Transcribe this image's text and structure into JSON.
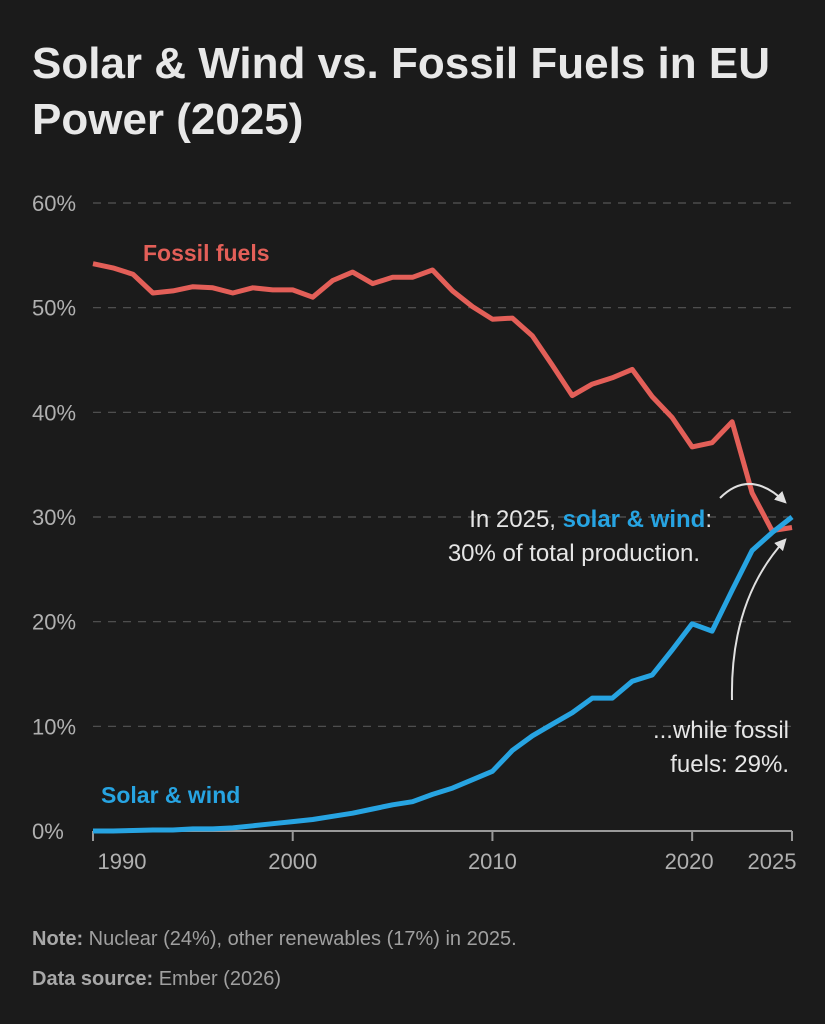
{
  "chart_data": {
    "type": "line",
    "title": "Solar & Wind vs. Fossil Fuels in EU Power (2025)",
    "x": [
      1990,
      1991,
      1992,
      1993,
      1994,
      1995,
      1996,
      1997,
      1998,
      1999,
      2000,
      2001,
      2002,
      2003,
      2004,
      2005,
      2006,
      2007,
      2008,
      2009,
      2010,
      2011,
      2012,
      2013,
      2014,
      2015,
      2016,
      2017,
      2018,
      2019,
      2020,
      2021,
      2022,
      2023,
      2024,
      2025
    ],
    "xticks": [
      "1990",
      "2000",
      "2010",
      "2020",
      "2025"
    ],
    "yticks": [
      "0%",
      "10%",
      "20%",
      "30%",
      "40%",
      "50%",
      "60%"
    ],
    "ylim": [
      0,
      60
    ],
    "xlim": [
      1990,
      2025
    ],
    "grid": "horizontal dashed",
    "series": [
      {
        "name": "Fossil fuels",
        "color": "#e35f58",
        "values": [
          54.2,
          53.8,
          53.2,
          51.4,
          51.6,
          52.0,
          51.9,
          51.4,
          51.9,
          51.7,
          51.7,
          51.0,
          52.6,
          53.4,
          52.3,
          52.9,
          52.9,
          53.6,
          51.6,
          50.1,
          48.9,
          49.0,
          47.3,
          44.5,
          41.6,
          42.7,
          43.3,
          44.1,
          41.5,
          39.5,
          36.7,
          37.1,
          39.1,
          32.3,
          28.7,
          29.0
        ]
      },
      {
        "name": "Solar & wind",
        "color": "#27a4e2",
        "values": [
          0.0,
          0.0,
          0.05,
          0.1,
          0.1,
          0.2,
          0.2,
          0.3,
          0.5,
          0.7,
          0.9,
          1.1,
          1.4,
          1.7,
          2.1,
          2.5,
          2.8,
          3.5,
          4.1,
          4.9,
          5.7,
          7.7,
          9.1,
          10.2,
          11.3,
          12.7,
          12.7,
          14.3,
          14.9,
          17.3,
          19.8,
          19.1,
          23.0,
          26.8,
          28.5,
          30.0
        ]
      }
    ],
    "annotations": {
      "solar_pre": "In 2025, ",
      "solar_highlight": "solar & wind",
      "solar_post": ":",
      "solar_line2": "30% of total production.",
      "fossil_line1": "...while fossil",
      "fossil_line2": "fuels: 29%."
    }
  },
  "notes": {
    "note_label": "Note:",
    "note_text": " Nuclear (24%), other renewables (17%) in 2025.",
    "source_label": "Data source:",
    "source_text": " Ember (2026)"
  },
  "colors": {
    "background": "#1b1b1b",
    "grid": "#555555",
    "text": "#e6e6e6",
    "axis_text": "#b0b0b0"
  }
}
